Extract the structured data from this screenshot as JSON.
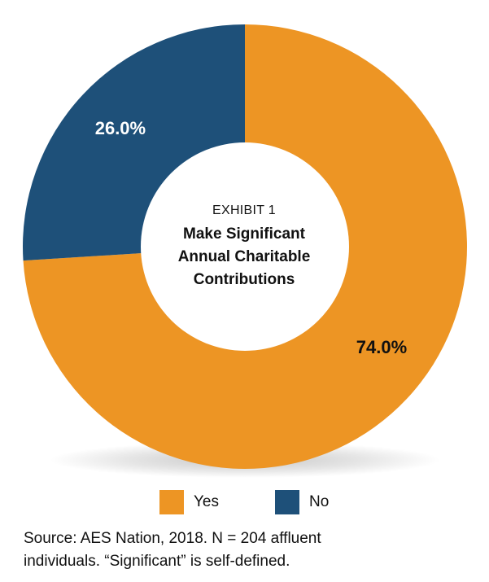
{
  "chart_data": {
    "type": "pie",
    "variant": "donut",
    "categories": [
      "Yes",
      "No"
    ],
    "values": [
      74.0,
      26.0
    ],
    "data_labels": [
      "74.0%",
      "26.0%"
    ],
    "colors": [
      "#ED9524",
      "#1E5079"
    ],
    "center": {
      "exhibit": "EXHIBIT 1",
      "title_lines": [
        "Make Significant",
        "Annual Charitable",
        "Contributions"
      ]
    },
    "legend": [
      {
        "label": "Yes",
        "color": "#ED9524"
      },
      {
        "label": "No",
        "color": "#1E5079"
      }
    ],
    "legend_position": "bottom"
  },
  "source": {
    "line1": "Source: AES Nation, 2018. N = 204 affluent",
    "line2": "individuals. “Significant” is self-defined."
  }
}
